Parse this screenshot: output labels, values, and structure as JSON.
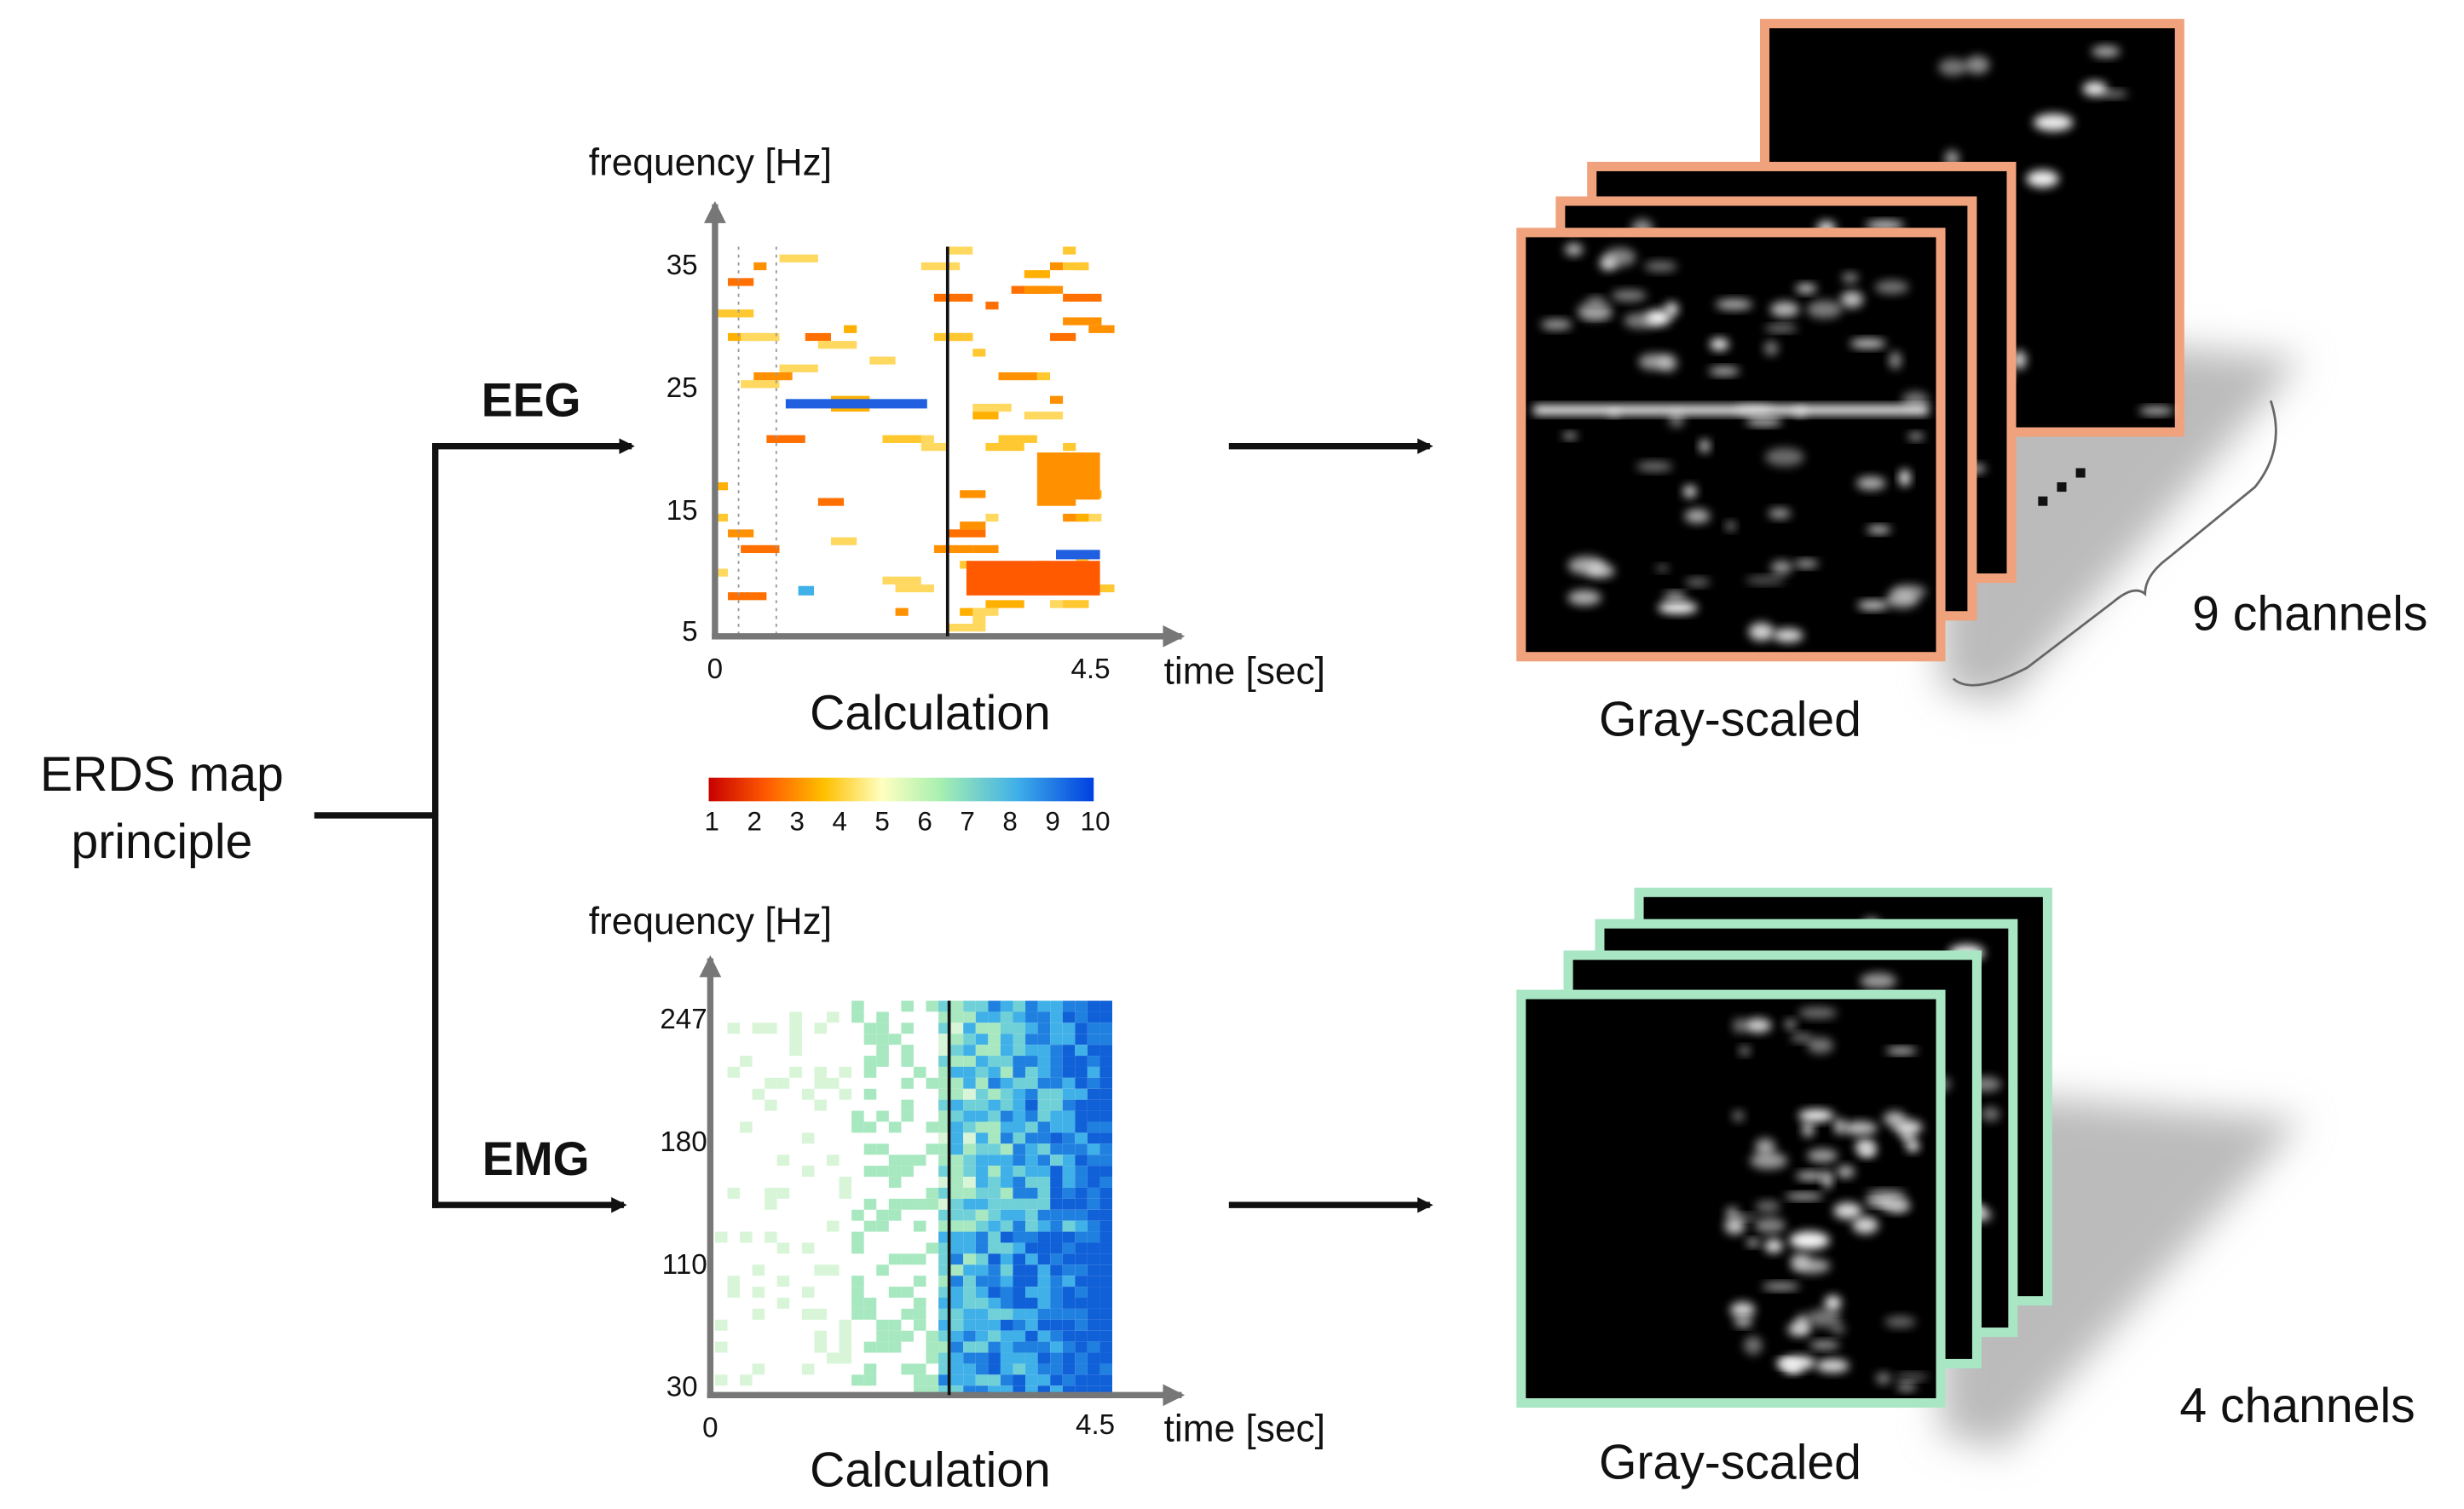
{
  "root": {
    "label": [
      "ERDS map",
      "principle"
    ]
  },
  "branches": [
    {
      "label": "EEG",
      "plot": {
        "y_label": "frequency [Hz]",
        "x_label": "time [sec]",
        "y_ticks": [
          "35",
          "25",
          "15",
          "5"
        ],
        "x_ticks": [
          "0",
          "4.5"
        ],
        "caption": "Calculation"
      },
      "output": {
        "caption": "Gray-scaled",
        "channels": "9 channels"
      }
    },
    {
      "label": "EMG",
      "plot": {
        "y_label": "frequency [Hz]",
        "x_label": "time [sec]",
        "y_ticks": [
          "247",
          "180",
          "110",
          "30"
        ],
        "x_ticks": [
          "0",
          "4.5"
        ],
        "caption": "Calculation"
      },
      "output": {
        "caption": "Gray-scaled",
        "channels": "4 channels"
      }
    }
  ],
  "colorbar": {
    "ticks": [
      "1",
      "2",
      "3",
      "4",
      "5",
      "6",
      "7",
      "8",
      "9",
      "10"
    ]
  }
}
